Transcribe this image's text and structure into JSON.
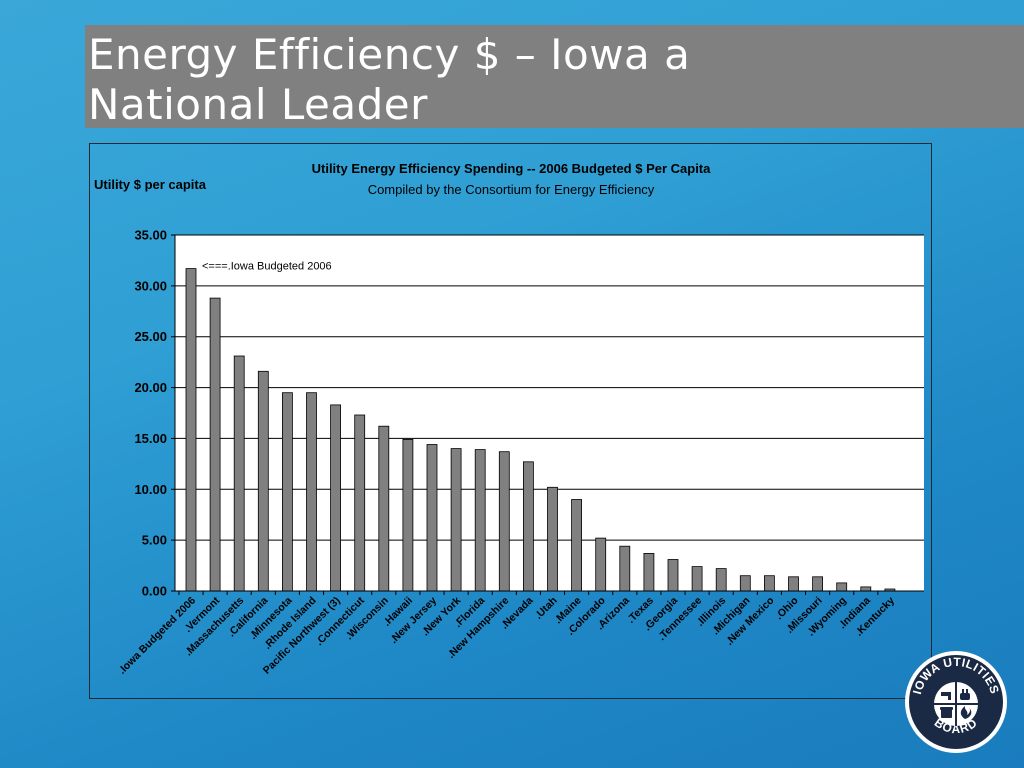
{
  "slide": {
    "title_line1": "Energy Efficiency $ – Iowa a",
    "title_line2": "National Leader"
  },
  "logo": {
    "text_top": "IOWA UTILITIES",
    "text_bottom": "BOARD"
  },
  "colors": {
    "background": "#2f9fd4",
    "title_bar": "#808080",
    "bar_fill": "#808080",
    "plot_bg": "#ffffff"
  },
  "chart_data": {
    "type": "bar",
    "title": "Utility Energy Efficiency Spending -- 2006 Budgeted $ Per Capita",
    "subtitle": "Compiled by the Consortium for Energy Efficiency",
    "ylabel": "Utility $ per capita",
    "xlabel": "",
    "ylim": [
      0,
      35
    ],
    "yticks": [
      "0.00",
      "5.00",
      "10.00",
      "15.00",
      "20.00",
      "25.00",
      "30.00",
      "35.00"
    ],
    "grid": true,
    "legend": "none",
    "annotation": "<===.Iowa Budgeted 2006",
    "categories": [
      ".Iowa Budgeted 2006",
      ".Vermont",
      ".Massachusetts",
      ".California",
      ".Minnesota",
      ".Rhode Island",
      "Pacific Northwest (3)",
      ".Connecticut",
      ".Wisconsin",
      ".Hawaii",
      ".New Jersey",
      ".New York",
      ".Florida",
      ".New Hampshire",
      ".Nevada",
      ".Utah",
      ".Maine",
      ".Colorado",
      ".Arizona",
      ".Texas",
      ".Georgia",
      ".Tennessee",
      ".Illinois",
      ".Michigan",
      ".New Mexico",
      ".Ohio",
      ".Missouri",
      ".Wyoming",
      ".Indiana",
      ".Kentucky"
    ],
    "values": [
      31.7,
      28.8,
      23.1,
      21.6,
      19.5,
      19.5,
      18.3,
      17.3,
      16.2,
      14.9,
      14.4,
      14.0,
      13.9,
      13.7,
      12.7,
      10.2,
      9.0,
      5.2,
      4.4,
      3.7,
      3.1,
      2.4,
      2.2,
      1.5,
      1.5,
      1.4,
      1.4,
      0.8,
      0.4,
      0.2
    ]
  }
}
